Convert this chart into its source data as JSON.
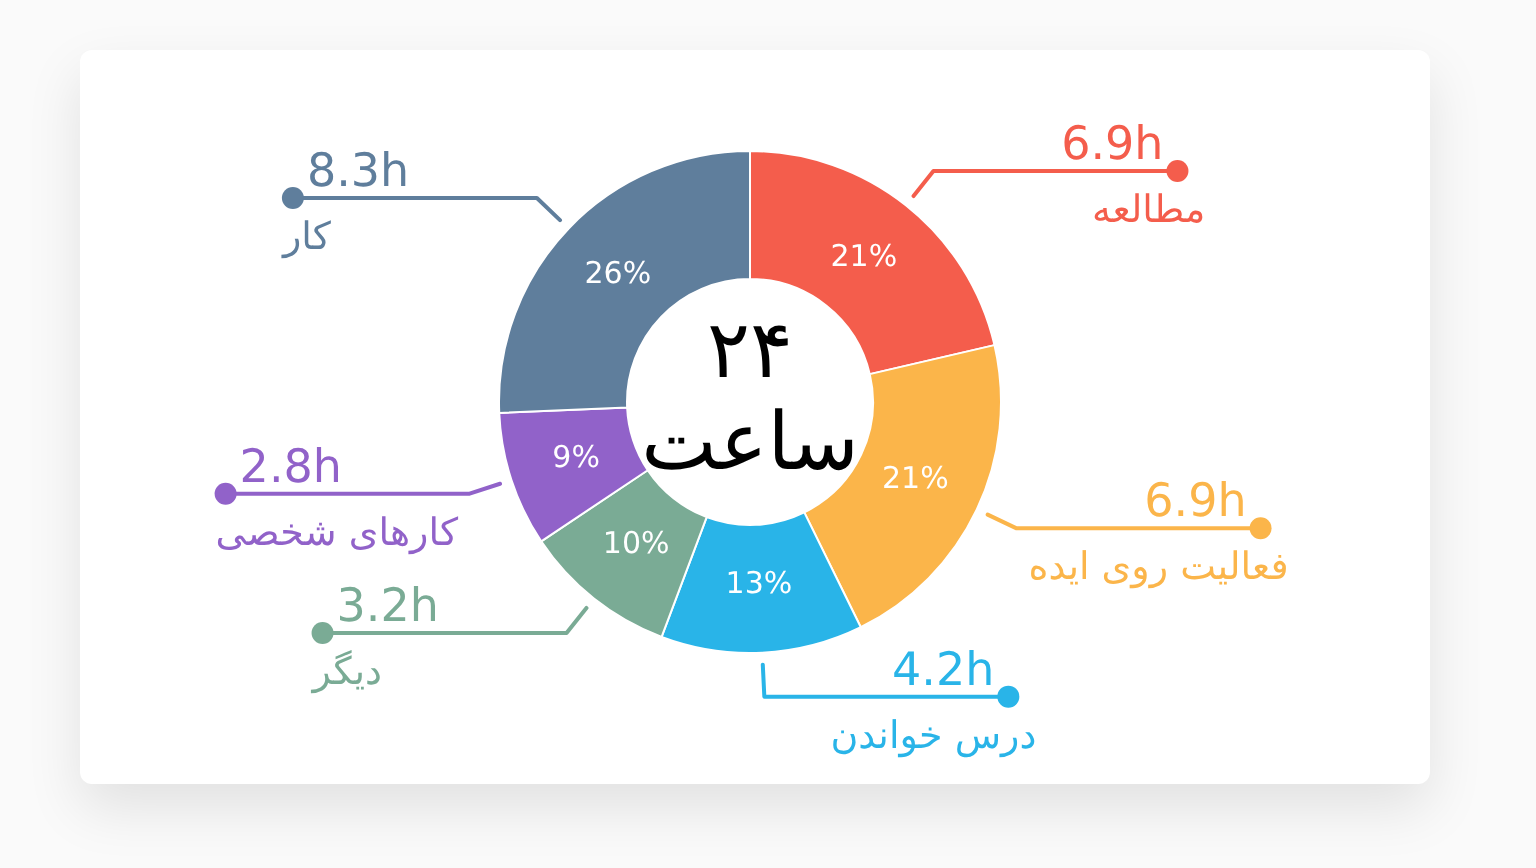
{
  "chart_data": {
    "type": "donut",
    "title": "۲۴ ساعت",
    "categories": [
      "مطالعه",
      "فعالیت روی ایده",
      "درس خواندن",
      "دیگر",
      "کارهای شخصی",
      "کار"
    ],
    "values": [
      6.9,
      6.9,
      4.2,
      3.2,
      2.8,
      8.3
    ],
    "colors": [
      "#f45d4c",
      "#fbb54a",
      "#29b4e8",
      "#7aab95",
      "#9162c9",
      "#5f7e9c"
    ],
    "value_labels": [
      "6.9h",
      "6.9h",
      "4.2h",
      "3.2h",
      "2.8h",
      "8.3h"
    ],
    "legend": "right",
    "annotations": [
      {
        "text": "21%",
        "x": "مطالعه"
      },
      {
        "text": "21%",
        "x": "فعالیت روی ایده"
      },
      {
        "text": "13%",
        "x": "درس خواندن"
      },
      {
        "text": "10%",
        "x": "دیگر"
      },
      {
        "text": "9%",
        "x": "کارهای شخصی"
      },
      {
        "text": "26%",
        "x": "کار"
      }
    ]
  }
}
